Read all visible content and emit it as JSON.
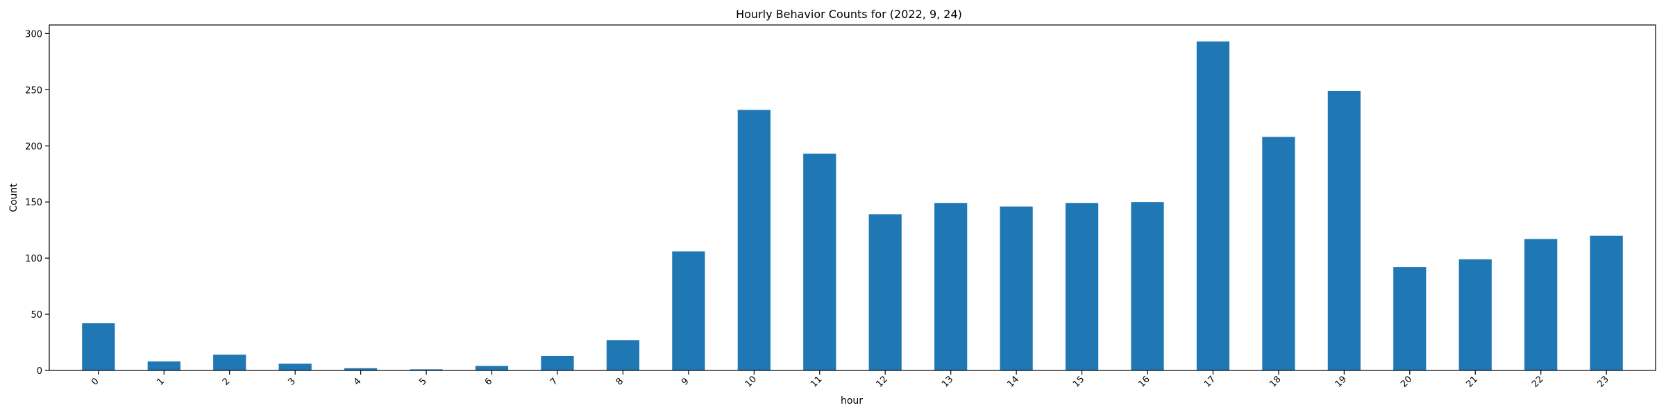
{
  "chart_data": {
    "type": "bar",
    "title": "Hourly Behavior Counts for (2022, 9, 24)",
    "xlabel": "hour",
    "ylabel": "Count",
    "categories": [
      "0",
      "1",
      "2",
      "3",
      "4",
      "5",
      "6",
      "7",
      "8",
      "9",
      "10",
      "11",
      "12",
      "13",
      "14",
      "15",
      "16",
      "17",
      "18",
      "19",
      "20",
      "21",
      "22",
      "23"
    ],
    "values": [
      42,
      8,
      14,
      6,
      2,
      1,
      4,
      13,
      27,
      106,
      232,
      193,
      139,
      149,
      146,
      149,
      150,
      293,
      208,
      249,
      92,
      99,
      117,
      120
    ],
    "ylim": [
      0,
      307.65
    ],
    "yticks": [
      0,
      50,
      100,
      150,
      200,
      250,
      300
    ],
    "grid": false,
    "bar_color": "#1f77b4",
    "legend": "none"
  }
}
